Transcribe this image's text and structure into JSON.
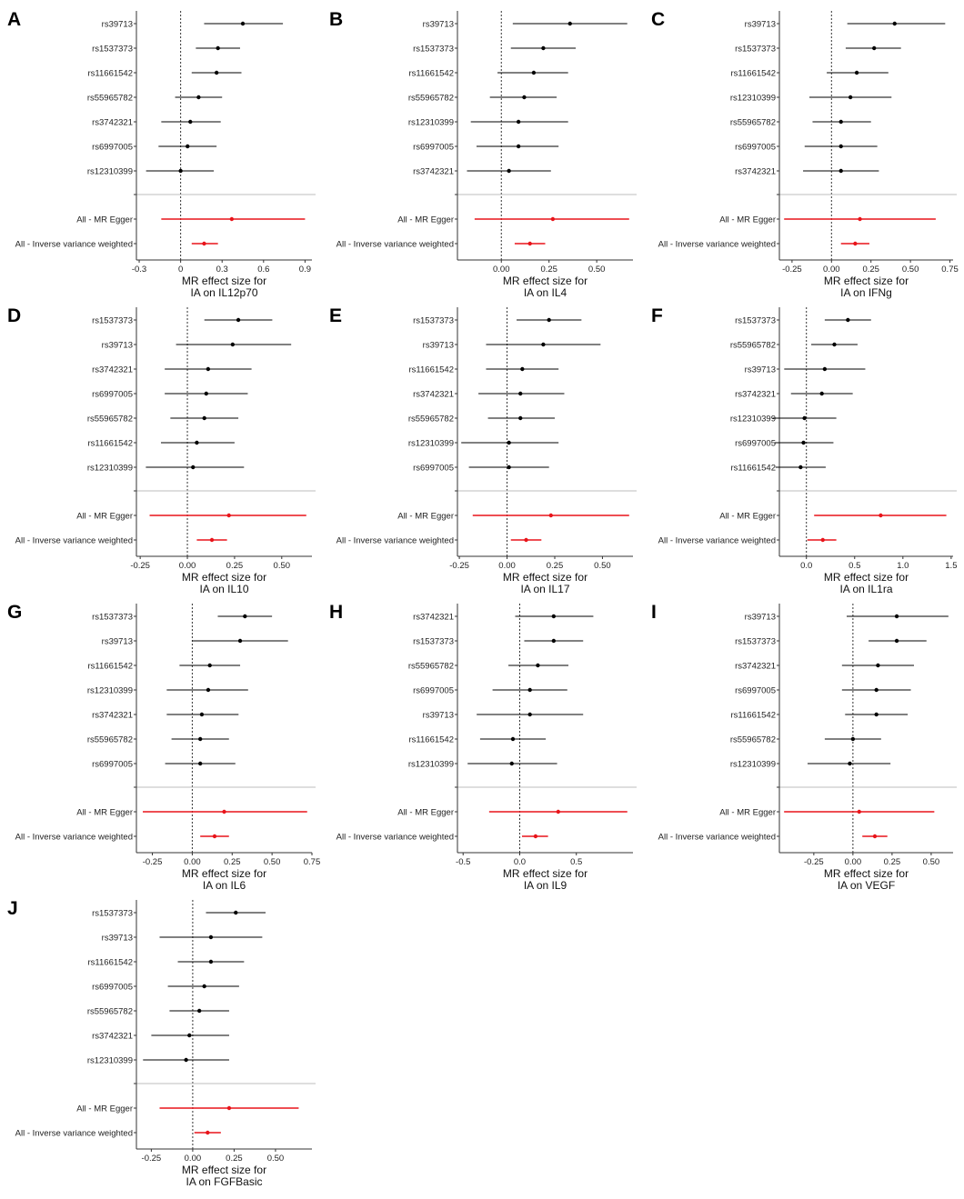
{
  "colors": {
    "snp": "#000000",
    "summary": "#e8141a",
    "separator": "#bdbdbd",
    "axis": "#333333"
  },
  "chart_data": [
    {
      "letter": "A",
      "type": "forest",
      "xlabel": "MR effect size for",
      "xlabel2": "IA on IL12p70",
      "xlim": [
        -0.32,
        0.95
      ],
      "xticks": [
        -0.3,
        0,
        0.3,
        0.6,
        0.9
      ],
      "xtick_labels": [
        "-0.3",
        "0",
        "0.3",
        "0.6",
        "0.9"
      ],
      "rows": [
        {
          "label": "rs39713",
          "est": 0.45,
          "lo": 0.17,
          "hi": 0.74
        },
        {
          "label": "rs1537373",
          "est": 0.27,
          "lo": 0.11,
          "hi": 0.43
        },
        {
          "label": "rs11661542",
          "est": 0.26,
          "lo": 0.08,
          "hi": 0.44
        },
        {
          "label": "rs55965782",
          "est": 0.13,
          "lo": -0.04,
          "hi": 0.3
        },
        {
          "label": "rs3742321",
          "est": 0.07,
          "lo": -0.14,
          "hi": 0.29
        },
        {
          "label": "rs6997005",
          "est": 0.05,
          "lo": -0.16,
          "hi": 0.26
        },
        {
          "label": "rs12310399",
          "est": 0.0,
          "lo": -0.25,
          "hi": 0.24
        }
      ],
      "summary": [
        {
          "label": "All - MR Egger",
          "est": 0.37,
          "lo": -0.14,
          "hi": 0.9
        },
        {
          "label": "All - Inverse variance weighted",
          "est": 0.17,
          "lo": 0.08,
          "hi": 0.27
        }
      ]
    },
    {
      "letter": "B",
      "type": "forest",
      "xlabel": "MR effect size for",
      "xlabel2": "IA on IL4",
      "xlim": [
        -0.23,
        0.69
      ],
      "xticks": [
        0,
        0.25,
        0.5
      ],
      "xtick_labels": [
        "0.00",
        "0.25",
        "0.50"
      ],
      "rows": [
        {
          "label": "rs39713",
          "est": 0.36,
          "lo": 0.06,
          "hi": 0.66
        },
        {
          "label": "rs1537373",
          "est": 0.22,
          "lo": 0.05,
          "hi": 0.39
        },
        {
          "label": "rs11661542",
          "est": 0.17,
          "lo": -0.02,
          "hi": 0.35
        },
        {
          "label": "rs55965782",
          "est": 0.12,
          "lo": -0.06,
          "hi": 0.29
        },
        {
          "label": "rs12310399",
          "est": 0.09,
          "lo": -0.16,
          "hi": 0.35
        },
        {
          "label": "rs6997005",
          "est": 0.09,
          "lo": -0.13,
          "hi": 0.3
        },
        {
          "label": "rs3742321",
          "est": 0.04,
          "lo": -0.18,
          "hi": 0.26
        }
      ],
      "summary": [
        {
          "label": "All - MR Egger",
          "est": 0.27,
          "lo": -0.14,
          "hi": 0.67
        },
        {
          "label": "All - Inverse variance weighted",
          "est": 0.15,
          "lo": 0.07,
          "hi": 0.23
        }
      ]
    },
    {
      "letter": "C",
      "type": "forest",
      "xlabel": "MR effect size for",
      "xlabel2": "IA on IFNg",
      "xlim": [
        -0.33,
        0.77
      ],
      "xticks": [
        -0.25,
        0,
        0.25,
        0.5,
        0.75
      ],
      "xtick_labels": [
        "-0.25",
        "0.00",
        "0.25",
        "0.50",
        "0.75"
      ],
      "rows": [
        {
          "label": "rs39713",
          "est": 0.4,
          "lo": 0.1,
          "hi": 0.72
        },
        {
          "label": "rs1537373",
          "est": 0.27,
          "lo": 0.09,
          "hi": 0.44
        },
        {
          "label": "rs11661542",
          "est": 0.16,
          "lo": -0.03,
          "hi": 0.36
        },
        {
          "label": "rs12310399",
          "est": 0.12,
          "lo": -0.14,
          "hi": 0.38
        },
        {
          "label": "rs55965782",
          "est": 0.06,
          "lo": -0.12,
          "hi": 0.25
        },
        {
          "label": "rs6997005",
          "est": 0.06,
          "lo": -0.17,
          "hi": 0.29
        },
        {
          "label": "rs3742321",
          "est": 0.06,
          "lo": -0.18,
          "hi": 0.3
        }
      ],
      "summary": [
        {
          "label": "All - MR Egger",
          "est": 0.18,
          "lo": -0.3,
          "hi": 0.66
        },
        {
          "label": "All - Inverse variance weighted",
          "est": 0.15,
          "lo": 0.06,
          "hi": 0.24
        }
      ]
    },
    {
      "letter": "D",
      "type": "forest",
      "xlabel": "MR effect size for",
      "xlabel2": "IA on IL10",
      "xlim": [
        -0.27,
        0.66
      ],
      "xticks": [
        -0.25,
        0,
        0.25,
        0.5
      ],
      "xtick_labels": [
        "-0.25",
        "0.00",
        "0.25",
        "0.50"
      ],
      "rows": [
        {
          "label": "rs1537373",
          "est": 0.27,
          "lo": 0.09,
          "hi": 0.45
        },
        {
          "label": "rs39713",
          "est": 0.24,
          "lo": -0.06,
          "hi": 0.55
        },
        {
          "label": "rs3742321",
          "est": 0.11,
          "lo": -0.12,
          "hi": 0.34
        },
        {
          "label": "rs6997005",
          "est": 0.1,
          "lo": -0.12,
          "hi": 0.32
        },
        {
          "label": "rs55965782",
          "est": 0.09,
          "lo": -0.09,
          "hi": 0.27
        },
        {
          "label": "rs11661542",
          "est": 0.05,
          "lo": -0.14,
          "hi": 0.25
        },
        {
          "label": "rs12310399",
          "est": 0.03,
          "lo": -0.22,
          "hi": 0.3
        }
      ],
      "summary": [
        {
          "label": "All - MR Egger",
          "est": 0.22,
          "lo": -0.2,
          "hi": 0.63
        },
        {
          "label": "All - Inverse variance weighted",
          "est": 0.13,
          "lo": 0.05,
          "hi": 0.21
        }
      ]
    },
    {
      "letter": "E",
      "type": "forest",
      "xlabel": "MR effect size for",
      "xlabel2": "IA on IL17",
      "xlim": [
        -0.26,
        0.66
      ],
      "xticks": [
        -0.25,
        0,
        0.25,
        0.5
      ],
      "xtick_labels": [
        "-0.25",
        "0.00",
        "0.25",
        "0.50"
      ],
      "rows": [
        {
          "label": "rs1537373",
          "est": 0.22,
          "lo": 0.05,
          "hi": 0.39
        },
        {
          "label": "rs39713",
          "est": 0.19,
          "lo": -0.11,
          "hi": 0.49
        },
        {
          "label": "rs11661542",
          "est": 0.08,
          "lo": -0.11,
          "hi": 0.27
        },
        {
          "label": "rs3742321",
          "est": 0.07,
          "lo": -0.15,
          "hi": 0.3
        },
        {
          "label": "rs55965782",
          "est": 0.07,
          "lo": -0.1,
          "hi": 0.25
        },
        {
          "label": "rs12310399",
          "est": 0.01,
          "lo": -0.24,
          "hi": 0.27
        },
        {
          "label": "rs6997005",
          "est": 0.01,
          "lo": -0.2,
          "hi": 0.22
        }
      ],
      "summary": [
        {
          "label": "All - MR Egger",
          "est": 0.23,
          "lo": -0.18,
          "hi": 0.64
        },
        {
          "label": "All - Inverse variance weighted",
          "est": 0.1,
          "lo": 0.02,
          "hi": 0.18
        }
      ]
    },
    {
      "letter": "F",
      "type": "forest",
      "xlabel": "MR effect size for",
      "xlabel2": "IA on IL1ra",
      "xlim": [
        -0.28,
        1.52
      ],
      "xticks": [
        0,
        0.5,
        1.0,
        1.5
      ],
      "xtick_labels": [
        "0.0",
        "0.5",
        "1.0",
        "1.5"
      ],
      "rows": [
        {
          "label": "rs1537373",
          "est": 0.43,
          "lo": 0.19,
          "hi": 0.67
        },
        {
          "label": "rs55965782",
          "est": 0.29,
          "lo": 0.05,
          "hi": 0.53
        },
        {
          "label": "rs39713",
          "est": 0.19,
          "lo": -0.23,
          "hi": 0.61
        },
        {
          "label": "rs3742321",
          "est": 0.16,
          "lo": -0.16,
          "hi": 0.48
        },
        {
          "label": "rs12310399",
          "est": -0.02,
          "lo": -0.35,
          "hi": 0.31
        },
        {
          "label": "rs6997005",
          "est": -0.03,
          "lo": -0.33,
          "hi": 0.28
        },
        {
          "label": "rs11661542",
          "est": -0.06,
          "lo": -0.32,
          "hi": 0.2
        }
      ],
      "summary": [
        {
          "label": "All - MR Egger",
          "est": 0.77,
          "lo": 0.08,
          "hi": 1.45
        },
        {
          "label": "All - Inverse variance weighted",
          "est": 0.17,
          "lo": 0.01,
          "hi": 0.31
        }
      ]
    },
    {
      "letter": "G",
      "type": "forest",
      "xlabel": "MR effect size for",
      "xlabel2": "IA on IL6",
      "xlim": [
        -0.35,
        0.75
      ],
      "xticks": [
        -0.25,
        0,
        0.25,
        0.5,
        0.75
      ],
      "xtick_labels": [
        "-0.25",
        "0.00",
        "0.25",
        "0.50",
        "0.75"
      ],
      "rows": [
        {
          "label": "rs1537373",
          "est": 0.33,
          "lo": 0.16,
          "hi": 0.5
        },
        {
          "label": "rs39713",
          "est": 0.3,
          "lo": 0.0,
          "hi": 0.6
        },
        {
          "label": "rs11661542",
          "est": 0.11,
          "lo": -0.08,
          "hi": 0.3
        },
        {
          "label": "rs12310399",
          "est": 0.1,
          "lo": -0.16,
          "hi": 0.35
        },
        {
          "label": "rs3742321",
          "est": 0.06,
          "lo": -0.16,
          "hi": 0.29
        },
        {
          "label": "rs55965782",
          "est": 0.05,
          "lo": -0.13,
          "hi": 0.23
        },
        {
          "label": "rs6997005",
          "est": 0.05,
          "lo": -0.17,
          "hi": 0.27
        }
      ],
      "summary": [
        {
          "label": "All - MR Egger",
          "est": 0.2,
          "lo": -0.31,
          "hi": 0.72
        },
        {
          "label": "All - Inverse variance weighted",
          "est": 0.14,
          "lo": 0.05,
          "hi": 0.23
        }
      ]
    },
    {
      "letter": "H",
      "type": "forest",
      "xlabel": "MR effect size for",
      "xlabel2": "IA on IL9",
      "xlim": [
        -0.55,
        1.0
      ],
      "xticks": [
        -0.5,
        0,
        0.5
      ],
      "xtick_labels": [
        "-0.5",
        "0.0",
        "0.5"
      ],
      "rows": [
        {
          "label": "rs3742321",
          "est": 0.3,
          "lo": -0.04,
          "hi": 0.65
        },
        {
          "label": "rs1537373",
          "est": 0.3,
          "lo": 0.04,
          "hi": 0.56
        },
        {
          "label": "rs55965782",
          "est": 0.16,
          "lo": -0.1,
          "hi": 0.43
        },
        {
          "label": "rs6997005",
          "est": 0.09,
          "lo": -0.24,
          "hi": 0.42
        },
        {
          "label": "rs39713",
          "est": 0.09,
          "lo": -0.38,
          "hi": 0.56
        },
        {
          "label": "rs11661542",
          "est": -0.06,
          "lo": -0.35,
          "hi": 0.23
        },
        {
          "label": "rs12310399",
          "est": -0.07,
          "lo": -0.46,
          "hi": 0.33
        }
      ],
      "summary": [
        {
          "label": "All - MR Egger",
          "est": 0.34,
          "lo": -0.27,
          "hi": 0.95
        },
        {
          "label": "All - Inverse variance weighted",
          "est": 0.14,
          "lo": 0.02,
          "hi": 0.25
        }
      ]
    },
    {
      "letter": "I",
      "type": "forest",
      "xlabel": "MR effect size for",
      "xlabel2": "IA on VEGF",
      "xlim": [
        -0.47,
        0.64
      ],
      "xticks": [
        -0.25,
        0,
        0.25,
        0.5
      ],
      "xtick_labels": [
        "-0.25",
        "0.00",
        "0.25",
        "0.50"
      ],
      "rows": [
        {
          "label": "rs39713",
          "est": 0.28,
          "lo": -0.04,
          "hi": 0.61
        },
        {
          "label": "rs1537373",
          "est": 0.28,
          "lo": 0.1,
          "hi": 0.47
        },
        {
          "label": "rs3742321",
          "est": 0.16,
          "lo": -0.07,
          "hi": 0.39
        },
        {
          "label": "rs6997005",
          "est": 0.15,
          "lo": -0.07,
          "hi": 0.37
        },
        {
          "label": "rs11661542",
          "est": 0.15,
          "lo": -0.05,
          "hi": 0.35
        },
        {
          "label": "rs55965782",
          "est": 0.0,
          "lo": -0.18,
          "hi": 0.18
        },
        {
          "label": "rs12310399",
          "est": -0.02,
          "lo": -0.29,
          "hi": 0.24
        }
      ],
      "summary": [
        {
          "label": "All - MR Egger",
          "est": 0.04,
          "lo": -0.44,
          "hi": 0.52
        },
        {
          "label": "All - Inverse variance weighted",
          "est": 0.14,
          "lo": 0.06,
          "hi": 0.22
        }
      ]
    },
    {
      "letter": "J",
      "type": "forest",
      "xlabel": "MR effect size for",
      "xlabel2": "IA on FGFBasic",
      "xlim": [
        -0.34,
        0.72
      ],
      "xticks": [
        -0.25,
        0,
        0.25,
        0.5
      ],
      "xtick_labels": [
        "-0.25",
        "0.00",
        "0.25",
        "0.50"
      ],
      "rows": [
        {
          "label": "rs1537373",
          "est": 0.26,
          "lo": 0.08,
          "hi": 0.44
        },
        {
          "label": "rs39713",
          "est": 0.11,
          "lo": -0.2,
          "hi": 0.42
        },
        {
          "label": "rs11661542",
          "est": 0.11,
          "lo": -0.09,
          "hi": 0.31
        },
        {
          "label": "rs6997005",
          "est": 0.07,
          "lo": -0.15,
          "hi": 0.28
        },
        {
          "label": "rs55965782",
          "est": 0.04,
          "lo": -0.14,
          "hi": 0.22
        },
        {
          "label": "rs3742321",
          "est": -0.02,
          "lo": -0.25,
          "hi": 0.22
        },
        {
          "label": "rs12310399",
          "est": -0.04,
          "lo": -0.3,
          "hi": 0.22
        }
      ],
      "summary": [
        {
          "label": "All - MR Egger",
          "est": 0.22,
          "lo": -0.2,
          "hi": 0.64
        },
        {
          "label": "All - Inverse variance weighted",
          "est": 0.09,
          "lo": 0.01,
          "hi": 0.17
        }
      ]
    }
  ]
}
